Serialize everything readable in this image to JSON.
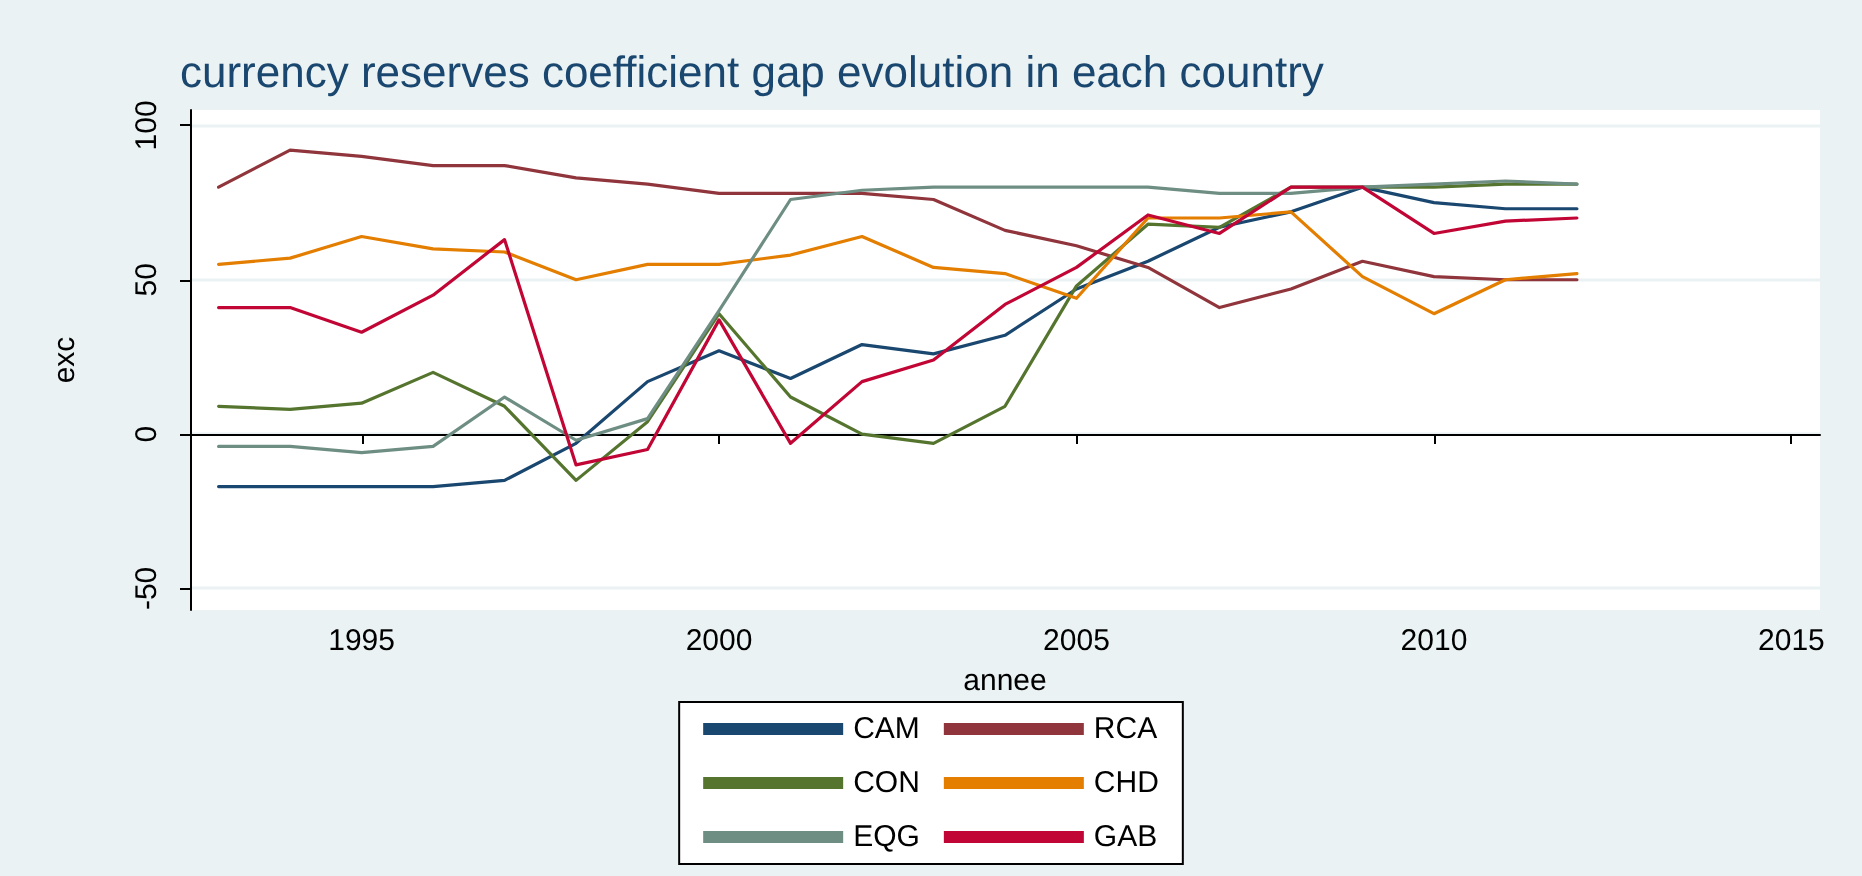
{
  "chart_data": {
    "type": "line",
    "title": "currency reserves coefficient gap evolution in each country",
    "xlabel": "annee",
    "ylabel": "exc",
    "x": [
      1993,
      1994,
      1995,
      1996,
      1997,
      1998,
      1999,
      2000,
      2001,
      2002,
      2003,
      2004,
      2005,
      2006,
      2007,
      2008,
      2009,
      2010,
      2011,
      2012
    ],
    "xlim": [
      1992.6,
      2015.4
    ],
    "xticks": [
      1995,
      2000,
      2005,
      2010,
      2015
    ],
    "ylim": [
      -57,
      105
    ],
    "yticks": [
      -50,
      0,
      50,
      100
    ],
    "grid": "y",
    "legend": "bottom",
    "marker": "none",
    "line_style": "solid",
    "series": [
      {
        "name": "CAM",
        "color": "#1a476f",
        "values": [
          -17,
          -17,
          -17,
          -17,
          -15,
          -3,
          17,
          27,
          18,
          29,
          26,
          32,
          47,
          56,
          67,
          72,
          80,
          75,
          73,
          73
        ]
      },
      {
        "name": "RCA",
        "color": "#90353b",
        "values": [
          80,
          92,
          90,
          87,
          87,
          83,
          81,
          78,
          78,
          78,
          76,
          66,
          61,
          54,
          41,
          47,
          56,
          51,
          50,
          50
        ]
      },
      {
        "name": "CON",
        "color": "#55752f",
        "values": [
          9,
          8,
          10,
          20,
          9,
          -15,
          4,
          39,
          12,
          0,
          -3,
          9,
          48,
          68,
          67,
          80,
          80,
          80,
          81,
          81
        ]
      },
      {
        "name": "CHD",
        "color": "#e37e00",
        "values": [
          55,
          57,
          64,
          60,
          59,
          50,
          55,
          55,
          58,
          64,
          54,
          52,
          44,
          70,
          70,
          72,
          51,
          39,
          50,
          52
        ]
      },
      {
        "name": "EQG",
        "color": "#6e8e84",
        "values": [
          -4,
          -4,
          -6,
          -4,
          12,
          -2,
          5,
          40,
          76,
          79,
          80,
          80,
          80,
          80,
          78,
          78,
          80,
          81,
          82,
          81
        ]
      },
      {
        "name": "GAB",
        "color": "#c10534",
        "values": [
          41,
          41,
          33,
          45,
          63,
          -10,
          -5,
          37,
          -3,
          17,
          24,
          42,
          54,
          71,
          65,
          80,
          80,
          65,
          69,
          70
        ]
      }
    ]
  }
}
